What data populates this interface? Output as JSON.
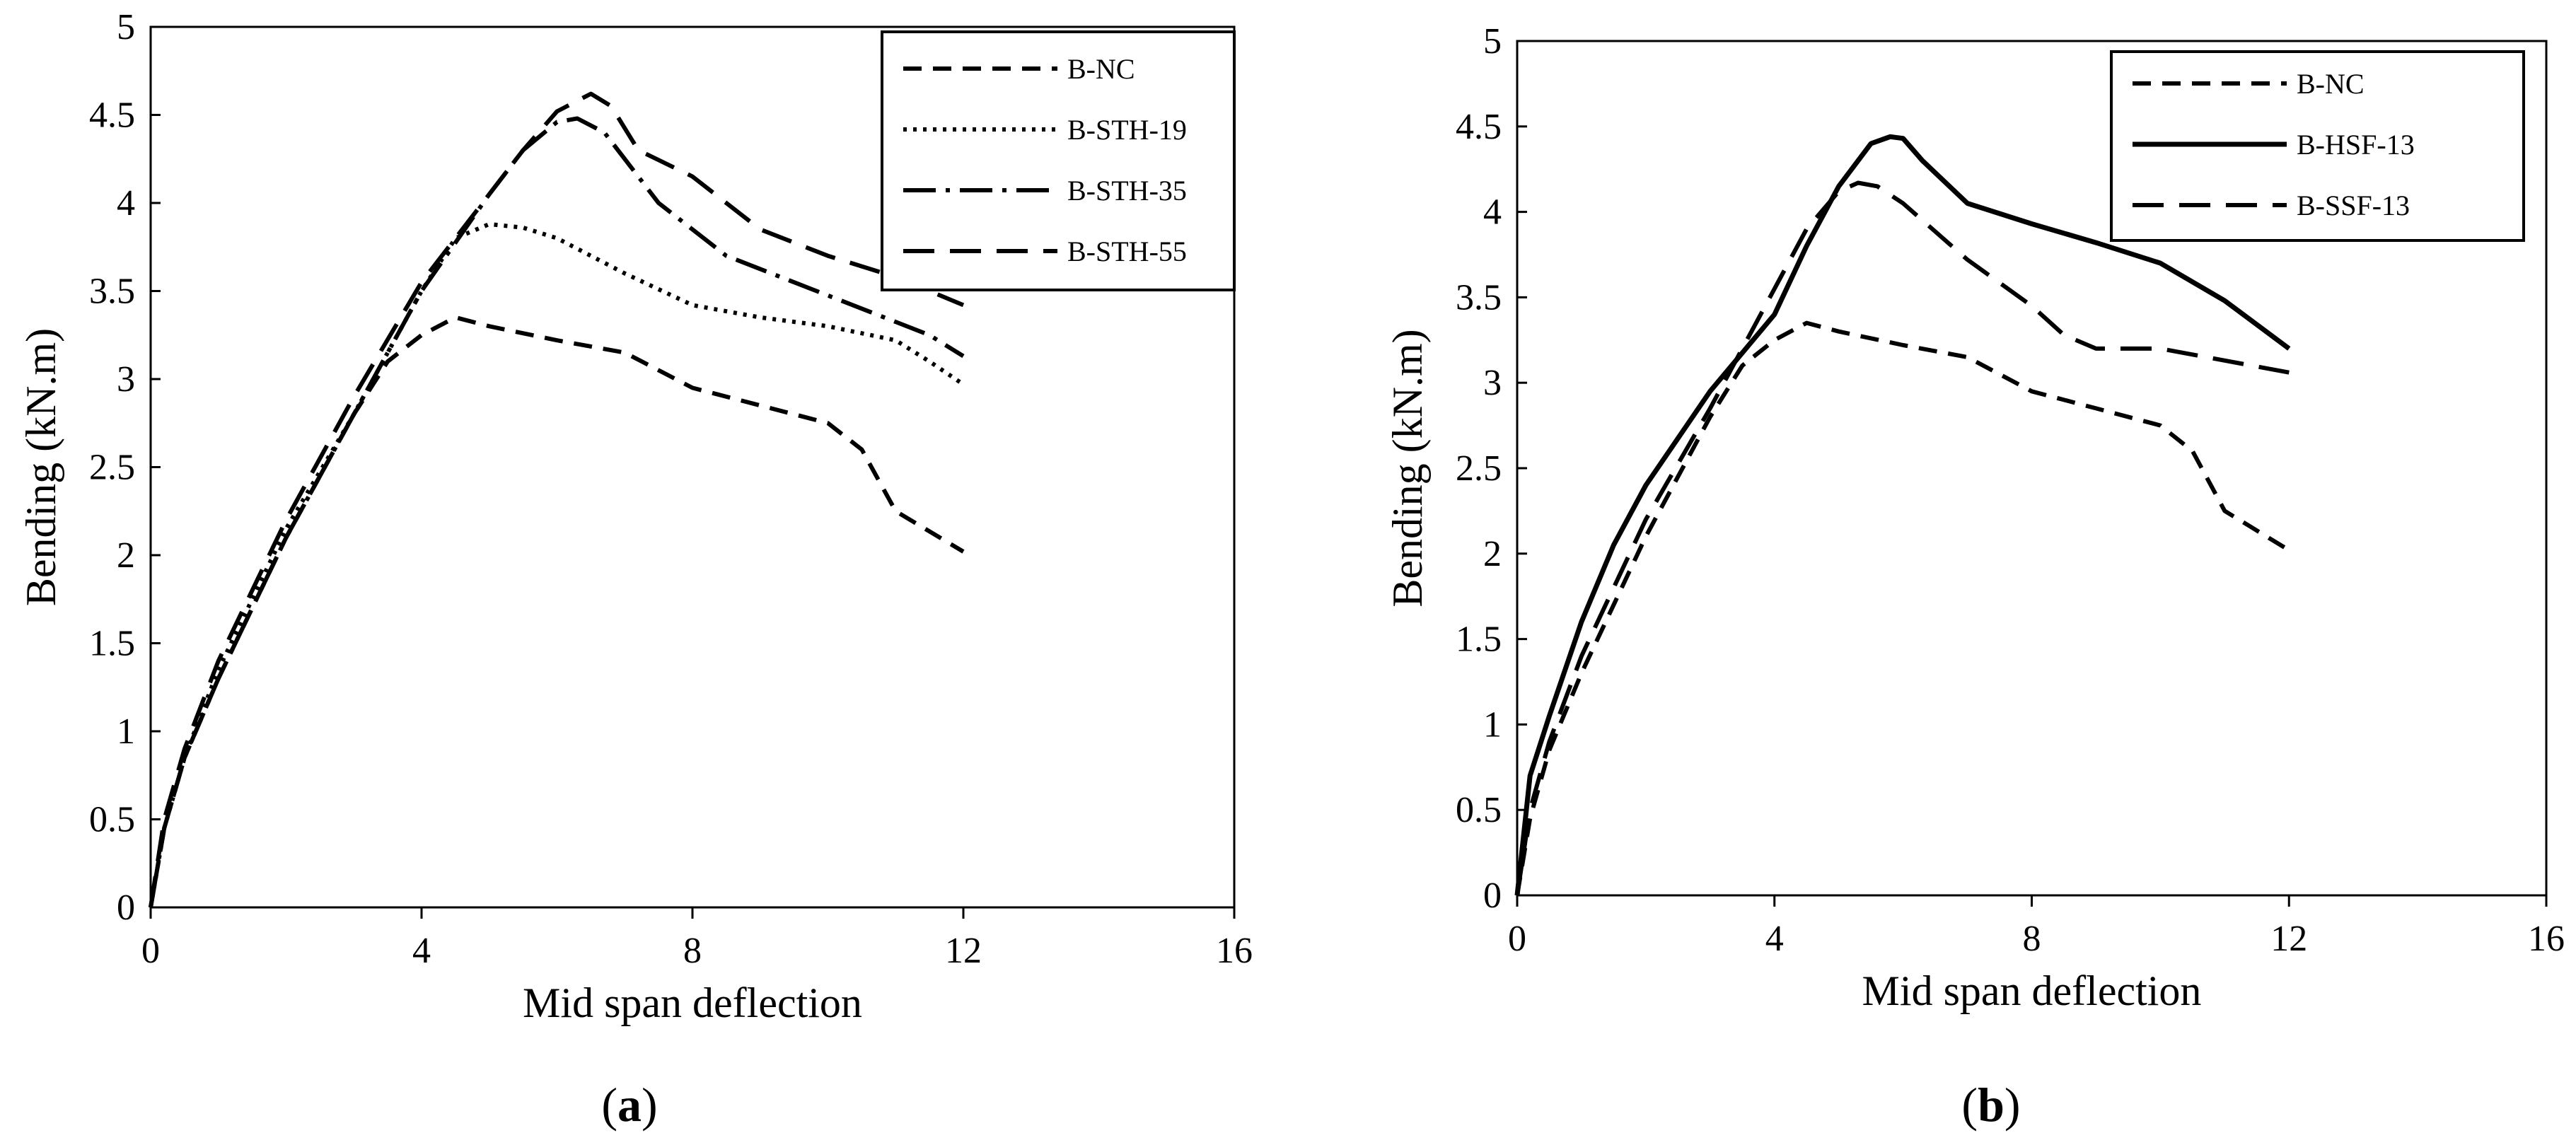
{
  "chart_data": [
    {
      "type": "line",
      "panel_label": "(a)",
      "panel_letter": "a",
      "xlabel": "Mid span deflection",
      "ylabel": "Bending (kN.m)",
      "xlim": [
        0,
        16
      ],
      "ylim": [
        0,
        5
      ],
      "x_ticks": [
        "0",
        "4",
        "8",
        "12",
        "16"
      ],
      "y_ticks": [
        "0",
        "0.5",
        "1",
        "1.5",
        "2",
        "2.5",
        "3",
        "3.5",
        "4",
        "4.5",
        "5"
      ],
      "grid": false,
      "legend_position": "top-right",
      "series": [
        {
          "name": "B-NC",
          "style": "dash-short",
          "x": [
            0,
            0.2,
            0.5,
            1,
            1.5,
            2,
            2.5,
            3,
            3.5,
            4,
            4.5,
            5,
            6,
            7,
            8,
            9,
            10,
            10.5,
            11,
            12
          ],
          "y": [
            0,
            0.45,
            0.85,
            1.3,
            1.7,
            2.1,
            2.45,
            2.8,
            3.1,
            3.25,
            3.35,
            3.3,
            3.22,
            3.15,
            2.95,
            2.85,
            2.75,
            2.6,
            2.25,
            2.02
          ]
        },
        {
          "name": "B-STH-19",
          "style": "dotted",
          "x": [
            0,
            0.2,
            0.5,
            1,
            1.5,
            2,
            3,
            4,
            4.5,
            5,
            5.5,
            6,
            7,
            8,
            9,
            10,
            11,
            11.5,
            12
          ],
          "y": [
            0,
            0.45,
            0.85,
            1.35,
            1.75,
            2.15,
            2.8,
            3.5,
            3.8,
            3.88,
            3.86,
            3.8,
            3.6,
            3.42,
            3.35,
            3.3,
            3.22,
            3.1,
            2.97
          ]
        },
        {
          "name": "B-STH-35",
          "style": "dash-dot",
          "x": [
            0,
            0.2,
            0.5,
            1,
            1.5,
            2,
            3,
            4,
            5,
            5.5,
            6,
            6.3,
            6.7,
            7.5,
            8.5,
            9.5,
            10.5,
            11.5,
            12
          ],
          "y": [
            0,
            0.45,
            0.85,
            1.3,
            1.7,
            2.1,
            2.8,
            3.5,
            4.05,
            4.3,
            4.46,
            4.48,
            4.4,
            4.0,
            3.7,
            3.55,
            3.4,
            3.25,
            3.13
          ]
        },
        {
          "name": "B-STH-55",
          "style": "dash-long",
          "x": [
            0,
            0.2,
            0.5,
            1,
            1.5,
            2,
            3,
            4,
            5,
            5.5,
            6,
            6.5,
            6.8,
            7.2,
            8,
            9,
            10,
            11,
            12
          ],
          "y": [
            0,
            0.5,
            0.9,
            1.4,
            1.8,
            2.2,
            2.9,
            3.55,
            4.05,
            4.3,
            4.52,
            4.62,
            4.55,
            4.3,
            4.15,
            3.85,
            3.7,
            3.58,
            3.42
          ]
        }
      ]
    },
    {
      "type": "line",
      "panel_label": "(b)",
      "panel_letter": "b",
      "xlabel": "Mid span deflection",
      "ylabel": "Bending (kN.m)",
      "xlim": [
        0,
        16
      ],
      "ylim": [
        0,
        5
      ],
      "x_ticks": [
        "0",
        "4",
        "8",
        "12",
        "16"
      ],
      "y_ticks": [
        "0",
        "0.5",
        "1",
        "1.5",
        "2",
        "2.5",
        "3",
        "3.5",
        "4",
        "4.5",
        "5"
      ],
      "grid": false,
      "legend_position": "top-right",
      "series": [
        {
          "name": "B-NC",
          "style": "dash-short",
          "x": [
            0,
            0.2,
            0.5,
            1,
            1.5,
            2,
            2.5,
            3,
            3.5,
            4,
            4.5,
            5,
            6,
            7,
            8,
            9,
            10,
            10.5,
            11,
            12
          ],
          "y": [
            0,
            0.45,
            0.85,
            1.3,
            1.7,
            2.1,
            2.45,
            2.8,
            3.1,
            3.25,
            3.35,
            3.3,
            3.22,
            3.15,
            2.95,
            2.85,
            2.75,
            2.6,
            2.25,
            2.02
          ]
        },
        {
          "name": "B-HSF-13",
          "style": "solid",
          "x": [
            0,
            0.2,
            0.5,
            1,
            1.5,
            2,
            3,
            4,
            4.5,
            5,
            5.5,
            5.8,
            6,
            6.3,
            7,
            8,
            9,
            10,
            11,
            12
          ],
          "y": [
            0,
            0.7,
            1.05,
            1.6,
            2.05,
            2.4,
            2.95,
            3.4,
            3.8,
            4.15,
            4.4,
            4.44,
            4.43,
            4.3,
            4.05,
            3.93,
            3.82,
            3.7,
            3.48,
            3.2
          ]
        },
        {
          "name": "B-SSF-13",
          "style": "dash-long",
          "x": [
            0,
            0.2,
            0.5,
            1,
            1.5,
            2,
            3,
            4,
            4.5,
            5,
            5.3,
            5.6,
            6,
            7,
            8,
            8.5,
            9,
            9.5,
            10,
            12
          ],
          "y": [
            0,
            0.5,
            0.9,
            1.4,
            1.8,
            2.2,
            2.85,
            3.55,
            3.9,
            4.12,
            4.17,
            4.15,
            4.05,
            3.72,
            3.45,
            3.28,
            3.2,
            3.2,
            3.2,
            3.06
          ]
        }
      ]
    }
  ]
}
